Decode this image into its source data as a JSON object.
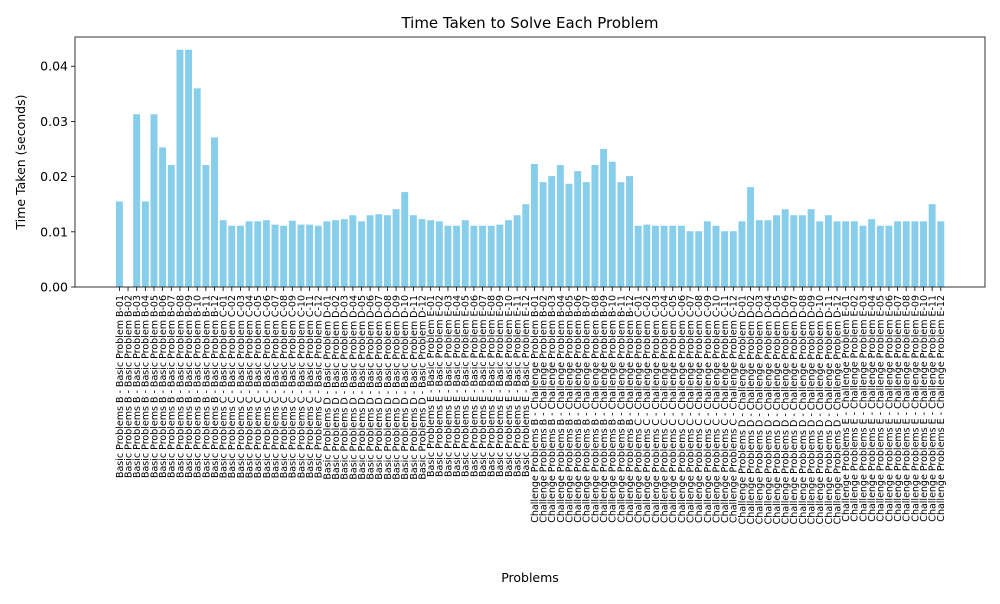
{
  "chart_data": {
    "type": "bar",
    "title": "Time Taken to Solve Each Problem",
    "xlabel": "Problems",
    "ylabel": "Time Taken (seconds)",
    "ylim": [
      0,
      0.0453
    ],
    "yticks": [
      "0.00",
      "0.01",
      "0.02",
      "0.03",
      "0.04"
    ],
    "bar_color": "#87ceeb",
    "grid": false,
    "categories": [
      "Basic Problems B - Basic Problem B-01",
      "Basic Problems B - Basic Problem B-02",
      "Basic Problems B - Basic Problem B-03",
      "Basic Problems B - Basic Problem B-04",
      "Basic Problems B - Basic Problem B-05",
      "Basic Problems B - Basic Problem B-06",
      "Basic Problems B - Basic Problem B-07",
      "Basic Problems B - Basic Problem B-08",
      "Basic Problems B - Basic Problem B-09",
      "Basic Problems B - Basic Problem B-10",
      "Basic Problems B - Basic Problem B-11",
      "Basic Problems B - Basic Problem B-12",
      "Basic Problems C - Basic Problem C-01",
      "Basic Problems C - Basic Problem C-02",
      "Basic Problems C - Basic Problem C-03",
      "Basic Problems C - Basic Problem C-04",
      "Basic Problems C - Basic Problem C-05",
      "Basic Problems C - Basic Problem C-06",
      "Basic Problems C - Basic Problem C-07",
      "Basic Problems C - Basic Problem C-08",
      "Basic Problems C - Basic Problem C-09",
      "Basic Problems C - Basic Problem C-10",
      "Basic Problems C - Basic Problem C-11",
      "Basic Problems C - Basic Problem C-12",
      "Basic Problems D - Basic Problem D-01",
      "Basic Problems D - Basic Problem D-02",
      "Basic Problems D - Basic Problem D-03",
      "Basic Problems D - Basic Problem D-04",
      "Basic Problems D - Basic Problem D-05",
      "Basic Problems D - Basic Problem D-06",
      "Basic Problems D - Basic Problem D-07",
      "Basic Problems D - Basic Problem D-08",
      "Basic Problems D - Basic Problem D-09",
      "Basic Problems D - Basic Problem D-10",
      "Basic Problems D - Basic Problem D-11",
      "Basic Problems D - Basic Problem D-12",
      "Basic Problems E - Basic Problem E-01",
      "Basic Problems E - Basic Problem E-02",
      "Basic Problems E - Basic Problem E-03",
      "Basic Problems E - Basic Problem E-04",
      "Basic Problems E - Basic Problem E-05",
      "Basic Problems E - Basic Problem E-06",
      "Basic Problems E - Basic Problem E-07",
      "Basic Problems E - Basic Problem E-08",
      "Basic Problems E - Basic Problem E-09",
      "Basic Problems E - Basic Problem E-10",
      "Basic Problems E - Basic Problem E-11",
      "Basic Problems E - Basic Problem E-12",
      "Challenge Problems B - Challenge Problem B-01",
      "Challenge Problems B - Challenge Problem B-02",
      "Challenge Problems B - Challenge Problem B-03",
      "Challenge Problems B - Challenge Problem B-04",
      "Challenge Problems B - Challenge Problem B-05",
      "Challenge Problems B - Challenge Problem B-06",
      "Challenge Problems B - Challenge Problem B-07",
      "Challenge Problems B - Challenge Problem B-08",
      "Challenge Problems B - Challenge Problem B-09",
      "Challenge Problems B - Challenge Problem B-10",
      "Challenge Problems B - Challenge Problem B-11",
      "Challenge Problems B - Challenge Problem B-12",
      "Challenge Problems C - Challenge Problem C-01",
      "Challenge Problems C - Challenge Problem C-02",
      "Challenge Problems C - Challenge Problem C-03",
      "Challenge Problems C - Challenge Problem C-04",
      "Challenge Problems C - Challenge Problem C-05",
      "Challenge Problems C - Challenge Problem C-06",
      "Challenge Problems C - Challenge Problem C-07",
      "Challenge Problems C - Challenge Problem C-08",
      "Challenge Problems C - Challenge Problem C-09",
      "Challenge Problems C - Challenge Problem C-10",
      "Challenge Problems C - Challenge Problem C-11",
      "Challenge Problems C - Challenge Problem C-12",
      "Challenge Problems D - Challenge Problem D-01",
      "Challenge Problems D - Challenge Problem D-02",
      "Challenge Problems D - Challenge Problem D-03",
      "Challenge Problems D - Challenge Problem D-04",
      "Challenge Problems D - Challenge Problem D-05",
      "Challenge Problems D - Challenge Problem D-06",
      "Challenge Problems D - Challenge Problem D-07",
      "Challenge Problems D - Challenge Problem D-08",
      "Challenge Problems D - Challenge Problem D-09",
      "Challenge Problems D - Challenge Problem D-10",
      "Challenge Problems D - Challenge Problem D-11",
      "Challenge Problems D - Challenge Problem D-12",
      "Challenge Problems E - Challenge Problem E-01",
      "Challenge Problems E - Challenge Problem E-02",
      "Challenge Problems E - Challenge Problem E-03",
      "Challenge Problems E - Challenge Problem E-04",
      "Challenge Problems E - Challenge Problem E-05",
      "Challenge Problems E - Challenge Problem E-06",
      "Challenge Problems E - Challenge Problem E-07",
      "Challenge Problems E - Challenge Problem E-08",
      "Challenge Problems E - Challenge Problem E-09",
      "Challenge Problems E - Challenge Problem E-10",
      "Challenge Problems E - Challenge Problem E-11",
      "Challenge Problems E - Challenge Problem E-12"
    ],
    "values": [
      0.0155,
      0.0,
      0.0313,
      0.0155,
      0.0313,
      0.0253,
      0.0221,
      0.043,
      0.043,
      0.036,
      0.0221,
      0.0271,
      0.0121,
      0.0111,
      0.0111,
      0.0119,
      0.0119,
      0.0121,
      0.0113,
      0.0111,
      0.012,
      0.0113,
      0.0113,
      0.0111,
      0.0119,
      0.0121,
      0.0123,
      0.013,
      0.0119,
      0.013,
      0.0132,
      0.013,
      0.0141,
      0.0172,
      0.013,
      0.0123,
      0.0121,
      0.0119,
      0.0111,
      0.0111,
      0.0121,
      0.0111,
      0.0111,
      0.0111,
      0.0113,
      0.0121,
      0.013,
      0.015,
      0.0223,
      0.019,
      0.0201,
      0.0221,
      0.0187,
      0.021,
      0.019,
      0.0221,
      0.025,
      0.0227,
      0.019,
      0.0201,
      0.0111,
      0.0113,
      0.0111,
      0.0111,
      0.0111,
      0.0111,
      0.0101,
      0.0101,
      0.0119,
      0.0111,
      0.0101,
      0.0101,
      0.0119,
      0.0181,
      0.0121,
      0.0121,
      0.013,
      0.0141,
      0.013,
      0.013,
      0.0141,
      0.0119,
      0.013,
      0.0119,
      0.0119,
      0.0119,
      0.0111,
      0.0123,
      0.0111,
      0.0111,
      0.0119,
      0.0119,
      0.0119,
      0.0119,
      0.015,
      0.0119
    ]
  }
}
